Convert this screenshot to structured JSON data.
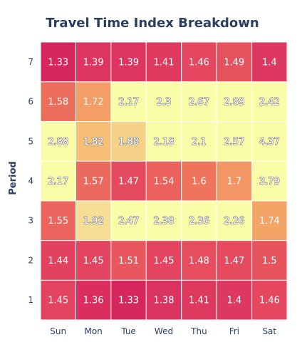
{
  "chart_data": {
    "type": "heatmap",
    "title": "Travel Time Index Breakdown",
    "xlabel": "",
    "ylabel": "Period",
    "x_categories": [
      "Sun",
      "Mon",
      "Tue",
      "Wed",
      "Thu",
      "Fri",
      "Sat"
    ],
    "y_categories": [
      "1",
      "2",
      "3",
      "4",
      "5",
      "6",
      "7"
    ],
    "values": [
      [
        1.45,
        1.36,
        1.33,
        1.38,
        1.41,
        1.4,
        1.46
      ],
      [
        1.44,
        1.45,
        1.51,
        1.45,
        1.48,
        1.47,
        1.5
      ],
      [
        1.55,
        1.92,
        2.47,
        2.38,
        2.36,
        2.26,
        1.74
      ],
      [
        2.17,
        1.57,
        1.47,
        1.54,
        1.6,
        1.7,
        3.79
      ],
      [
        2.88,
        1.82,
        1.88,
        2.18,
        2.1,
        2.57,
        4.37
      ],
      [
        1.58,
        1.72,
        2.17,
        2.3,
        2.67,
        2.89,
        2.42
      ],
      [
        1.33,
        1.39,
        1.39,
        1.41,
        1.46,
        1.49,
        1.4
      ]
    ],
    "labels": [
      [
        "1.45",
        "1.36",
        "1.33",
        "1.38",
        "1.41",
        "1.4",
        "1.46"
      ],
      [
        "1.44",
        "1.45",
        "1.51",
        "1.45",
        "1.48",
        "1.47",
        "1.5"
      ],
      [
        "1.55",
        "1.92",
        "2.47",
        "2.38",
        "2.36",
        "2.26",
        "1.74"
      ],
      [
        "2.17",
        "1.57",
        "1.47",
        "1.54",
        "1.6",
        "1.7",
        "3.79"
      ],
      [
        "2.88",
        "1.82",
        "1.88",
        "2.18",
        "2.1",
        "2.57",
        "4.37"
      ],
      [
        "1.58",
        "1.72",
        "2.17",
        "2.3",
        "2.67",
        "2.89",
        "2.42"
      ],
      [
        "1.33",
        "1.39",
        "1.39",
        "1.41",
        "1.46",
        "1.49",
        "1.4"
      ]
    ],
    "colorscale": [
      "#d21f5e",
      "#e4475f",
      "#f07a5c",
      "#f7b26a",
      "#f6e49a",
      "#fafda8"
    ],
    "color_range": [
      1.3,
      2.1
    ],
    "legend": "none",
    "grid": false
  }
}
